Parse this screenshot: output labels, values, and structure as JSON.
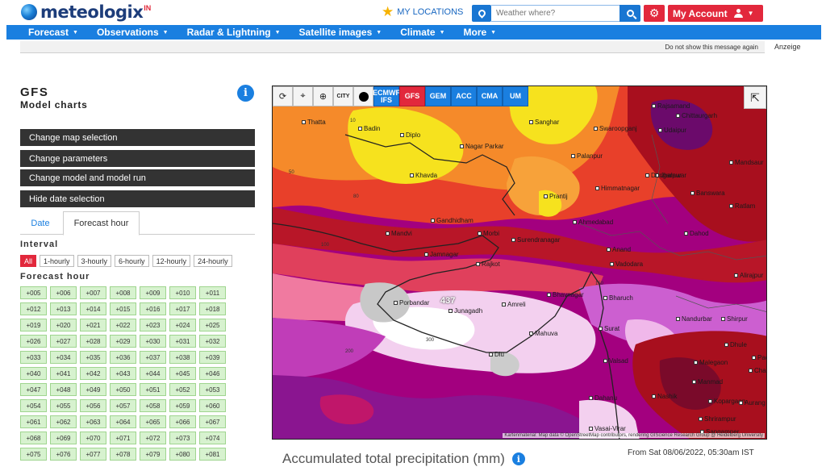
{
  "brand": {
    "name": "meteologix",
    "superscript": "IN"
  },
  "header": {
    "my_locations": "MY LOCATIONS",
    "search_placeholder": "Weather where?",
    "account_label": "My Account"
  },
  "nav": [
    {
      "label": "Forecast"
    },
    {
      "label": "Observations"
    },
    {
      "label": "Radar & Lightning"
    },
    {
      "label": "Satellite images"
    },
    {
      "label": "Climate"
    },
    {
      "label": "More"
    }
  ],
  "notice": {
    "dismiss": "Do not show this message again",
    "ad_label": "Anzeige"
  },
  "panel": {
    "model": "GFS",
    "subtitle": "Model charts",
    "buttons": [
      "Change map selection",
      "Change parameters",
      "Change model and model run",
      "Hide date selection"
    ],
    "tabs": {
      "date": "Date",
      "forecast": "Forecast hour"
    },
    "interval_label": "Interval",
    "intervals": [
      "All",
      "1-hourly",
      "3-hourly",
      "6-hourly",
      "12-hourly",
      "24-hourly"
    ],
    "active_interval": "All",
    "forecast_label": "Forecast hour",
    "hours": [
      "+005",
      "+006",
      "+007",
      "+008",
      "+009",
      "+010",
      "+011",
      "+012",
      "+013",
      "+014",
      "+015",
      "+016",
      "+017",
      "+018",
      "+019",
      "+020",
      "+021",
      "+022",
      "+023",
      "+024",
      "+025",
      "+026",
      "+027",
      "+028",
      "+029",
      "+030",
      "+031",
      "+032",
      "+033",
      "+034",
      "+035",
      "+036",
      "+037",
      "+038",
      "+039",
      "+040",
      "+041",
      "+042",
      "+043",
      "+044",
      "+045",
      "+046",
      "+047",
      "+048",
      "+049",
      "+050",
      "+051",
      "+052",
      "+053",
      "+054",
      "+055",
      "+056",
      "+057",
      "+058",
      "+059",
      "+060",
      "+061",
      "+062",
      "+063",
      "+064",
      "+065",
      "+066",
      "+067",
      "+068",
      "+069",
      "+070",
      "+071",
      "+072",
      "+073",
      "+074",
      "+075",
      "+076",
      "+077",
      "+078",
      "+079",
      "+080",
      "+081"
    ]
  },
  "map": {
    "models": [
      {
        "label": "ECMWF IFS",
        "active": false
      },
      {
        "label": "GFS",
        "active": true
      },
      {
        "label": "GEM",
        "active": false
      },
      {
        "label": "ACC",
        "active": false
      },
      {
        "label": "CMA",
        "active": false
      },
      {
        "label": "UM",
        "active": false
      }
    ],
    "toolbar_icons": [
      "refresh-icon",
      "pin-icon",
      "zoom-icon",
      "city-icon",
      "dot-icon"
    ],
    "city_label": "CITY",
    "places": [
      "Thatta",
      "Badin",
      "Diplo",
      "Sanghar",
      "Swaroopganj",
      "Rajsamand",
      "Chittaurgarh",
      "Udaipur",
      "Nagar Parkar",
      "Palanpur",
      "Mandsaur",
      "Khavda",
      "Jhalawar",
      "Dungarpur",
      "Himmatnagar",
      "Banswara",
      "Prantij",
      "Ratlam",
      "Gandhidham",
      "Ahmedabad",
      "Mandvi",
      "Morbi",
      "Surendranagar",
      "Dahod",
      "Anand",
      "Vadodara",
      "Jamnagar",
      "Rajkot",
      "Bhavnagar",
      "Bharuch",
      "Alirajpur",
      "Porbandar",
      "Junagadh",
      "Amreli",
      "Nandurbar",
      "Shirpur",
      "Mahuva",
      "Surat",
      "Dhule",
      "Valsad",
      "Malegaon",
      "Manmad",
      "Nashik",
      "Kopargaon",
      "Aurang",
      "Dahanu",
      "Shrirampur",
      "Vasai-Virar",
      "Sangamner",
      "Diu",
      "Chalis",
      "Pach"
    ],
    "isolines": [
      "10",
      "50",
      "80",
      "100",
      "150",
      "200",
      "300"
    ],
    "max_value": "437",
    "attribution": "Kartenmaterial: Map data © OpenStreetMap contributors, rendering GIScience Research Group @ Heidelberg University"
  },
  "chart": {
    "title": "Accumulated total precipitation (mm)",
    "from": "From Sat 08/06/2022, 05:30am IST"
  },
  "colors": {
    "brand_blue": "#1a7fe0",
    "accent_red": "#e2283c",
    "hour_green": "#d7f2cf"
  }
}
